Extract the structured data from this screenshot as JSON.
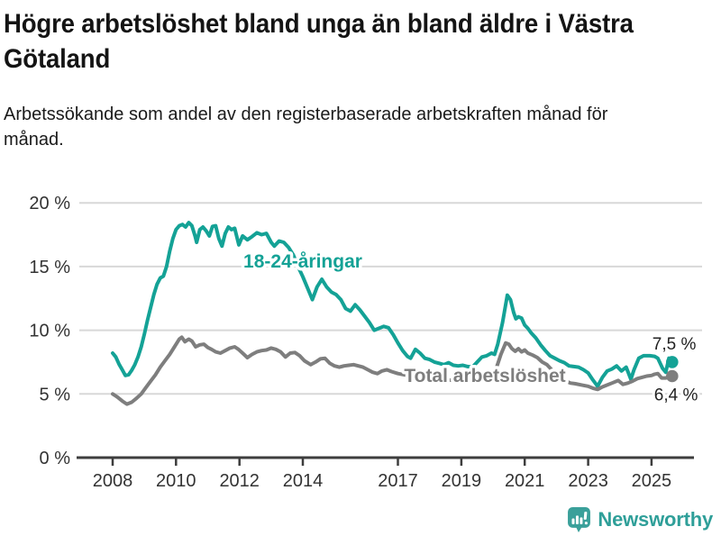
{
  "title": "Högre arbetslöshet bland unga än bland äldre i Västra Götaland",
  "subtitle": "Arbetssökande som andel av den registerbaserade arbetskraften månad för månad.",
  "branding": {
    "name": "Newsworthy"
  },
  "colors": {
    "youth_line": "#14a296",
    "total_line": "#7e7e7e",
    "grid": "#d8d8d8",
    "axis": "#3d3d3d",
    "tick_text": "#333333",
    "value_label": "#222222",
    "logo": "#2f9f99",
    "logo_icon": "#3aa09a"
  },
  "chart_data": {
    "type": "line",
    "title": "Högre arbetslöshet bland unga än bland äldre i Västra Götaland",
    "subtitle": "Arbetssökande som andel av den registerbaserade arbetskraften månad för månad.",
    "xlabel": "",
    "ylabel": "",
    "ylim": [
      0,
      20
    ],
    "xlim": [
      2008,
      2025.75
    ],
    "grid": true,
    "legend_position": "inline-labels",
    "y_ticks": [
      {
        "value": 0,
        "label": "0 %"
      },
      {
        "value": 5,
        "label": "5 %"
      },
      {
        "value": 10,
        "label": "10 %"
      },
      {
        "value": 15,
        "label": "15 %"
      },
      {
        "value": 20,
        "label": "20 %"
      }
    ],
    "x_ticks": [
      {
        "value": 2008,
        "label": "2008"
      },
      {
        "value": 2010,
        "label": "2010"
      },
      {
        "value": 2012,
        "label": "2012"
      },
      {
        "value": 2014,
        "label": "2014"
      },
      {
        "value": 2017,
        "label": "2017"
      },
      {
        "value": 2019,
        "label": "2019"
      },
      {
        "value": 2021,
        "label": "2021"
      },
      {
        "value": 2023,
        "label": "2023"
      },
      {
        "value": 2025,
        "label": "2025"
      }
    ],
    "series": [
      {
        "name": "18-24-åringar",
        "color": "#14a296",
        "end_label": "7,5 %",
        "end_value": 7.5,
        "points": [
          [
            2008.0,
            8.2
          ],
          [
            2008.1,
            7.9
          ],
          [
            2008.2,
            7.35
          ],
          [
            2008.3,
            6.9
          ],
          [
            2008.4,
            6.45
          ],
          [
            2008.5,
            6.5
          ],
          [
            2008.6,
            6.85
          ],
          [
            2008.7,
            7.3
          ],
          [
            2008.8,
            7.9
          ],
          [
            2008.9,
            8.7
          ],
          [
            2009.0,
            9.7
          ],
          [
            2009.1,
            10.8
          ],
          [
            2009.2,
            11.8
          ],
          [
            2009.3,
            12.8
          ],
          [
            2009.4,
            13.6
          ],
          [
            2009.5,
            14.1
          ],
          [
            2009.6,
            14.25
          ],
          [
            2009.7,
            15.0
          ],
          [
            2009.8,
            16.2
          ],
          [
            2009.9,
            17.2
          ],
          [
            2010.0,
            17.9
          ],
          [
            2010.1,
            18.2
          ],
          [
            2010.2,
            18.3
          ],
          [
            2010.3,
            18.1
          ],
          [
            2010.4,
            18.45
          ],
          [
            2010.5,
            18.2
          ],
          [
            2010.6,
            17.4
          ],
          [
            2010.65,
            16.9
          ],
          [
            2010.75,
            17.9
          ],
          [
            2010.85,
            18.1
          ],
          [
            2010.95,
            17.8
          ],
          [
            2011.05,
            17.4
          ],
          [
            2011.15,
            18.15
          ],
          [
            2011.25,
            18.2
          ],
          [
            2011.35,
            17.2
          ],
          [
            2011.45,
            16.6
          ],
          [
            2011.55,
            17.6
          ],
          [
            2011.65,
            18.1
          ],
          [
            2011.75,
            17.9
          ],
          [
            2011.85,
            18.0
          ],
          [
            2011.98,
            16.7
          ],
          [
            2012.1,
            17.4
          ],
          [
            2012.25,
            17.1
          ],
          [
            2012.4,
            17.35
          ],
          [
            2012.55,
            17.65
          ],
          [
            2012.7,
            17.5
          ],
          [
            2012.85,
            17.6
          ],
          [
            2013.0,
            16.9
          ],
          [
            2013.1,
            16.6
          ],
          [
            2013.25,
            17.0
          ],
          [
            2013.4,
            16.9
          ],
          [
            2013.55,
            16.5
          ],
          [
            2013.7,
            15.9
          ],
          [
            2013.85,
            15.0
          ],
          [
            2014.0,
            14.2
          ],
          [
            2014.15,
            13.3
          ],
          [
            2014.3,
            12.4
          ],
          [
            2014.45,
            13.4
          ],
          [
            2014.6,
            14.0
          ],
          [
            2014.75,
            13.4
          ],
          [
            2014.9,
            13.0
          ],
          [
            2015.05,
            12.8
          ],
          [
            2015.2,
            12.4
          ],
          [
            2015.35,
            11.7
          ],
          [
            2015.5,
            11.5
          ],
          [
            2015.65,
            12.0
          ],
          [
            2015.8,
            11.6
          ],
          [
            2015.95,
            11.1
          ],
          [
            2016.1,
            10.6
          ],
          [
            2016.25,
            10.0
          ],
          [
            2016.4,
            10.15
          ],
          [
            2016.55,
            10.3
          ],
          [
            2016.7,
            10.2
          ],
          [
            2016.85,
            9.65
          ],
          [
            2017.0,
            9.0
          ],
          [
            2017.15,
            8.4
          ],
          [
            2017.3,
            7.95
          ],
          [
            2017.4,
            7.8
          ],
          [
            2017.55,
            8.5
          ],
          [
            2017.7,
            8.2
          ],
          [
            2017.85,
            7.8
          ],
          [
            2018.0,
            7.7
          ],
          [
            2018.15,
            7.5
          ],
          [
            2018.3,
            7.4
          ],
          [
            2018.45,
            7.3
          ],
          [
            2018.6,
            7.45
          ],
          [
            2018.75,
            7.25
          ],
          [
            2018.9,
            7.2
          ],
          [
            2019.05,
            7.25
          ],
          [
            2019.2,
            7.15
          ],
          [
            2019.35,
            7.1
          ],
          [
            2019.5,
            7.5
          ],
          [
            2019.65,
            7.9
          ],
          [
            2019.8,
            8.0
          ],
          [
            2019.95,
            8.2
          ],
          [
            2020.05,
            8.1
          ],
          [
            2020.15,
            8.9
          ],
          [
            2020.3,
            10.6
          ],
          [
            2020.45,
            12.75
          ],
          [
            2020.55,
            12.4
          ],
          [
            2020.65,
            11.4
          ],
          [
            2020.72,
            10.9
          ],
          [
            2020.8,
            11.05
          ],
          [
            2020.9,
            10.95
          ],
          [
            2021.0,
            10.4
          ],
          [
            2021.1,
            10.15
          ],
          [
            2021.2,
            9.8
          ],
          [
            2021.35,
            9.4
          ],
          [
            2021.5,
            8.85
          ],
          [
            2021.65,
            8.4
          ],
          [
            2021.8,
            8.0
          ],
          [
            2021.95,
            7.8
          ],
          [
            2022.1,
            7.6
          ],
          [
            2022.25,
            7.45
          ],
          [
            2022.4,
            7.2
          ],
          [
            2022.55,
            7.15
          ],
          [
            2022.7,
            7.1
          ],
          [
            2022.85,
            6.9
          ],
          [
            2023.0,
            6.65
          ],
          [
            2023.15,
            6.1
          ],
          [
            2023.3,
            5.6
          ],
          [
            2023.45,
            6.3
          ],
          [
            2023.6,
            6.8
          ],
          [
            2023.75,
            6.95
          ],
          [
            2023.9,
            7.2
          ],
          [
            2024.05,
            6.8
          ],
          [
            2024.2,
            7.1
          ],
          [
            2024.35,
            6.15
          ],
          [
            2024.45,
            6.9
          ],
          [
            2024.6,
            7.8
          ],
          [
            2024.75,
            8.0
          ],
          [
            2024.95,
            8.0
          ],
          [
            2025.1,
            7.95
          ],
          [
            2025.2,
            7.8
          ],
          [
            2025.35,
            7.0
          ],
          [
            2025.45,
            6.7
          ],
          [
            2025.55,
            7.8
          ],
          [
            2025.65,
            7.5
          ]
        ]
      },
      {
        "name": "Total arbetslöshet",
        "color": "#7e7e7e",
        "end_label": "6,4 %",
        "end_value": 6.4,
        "points": [
          [
            2008.0,
            5.0
          ],
          [
            2008.15,
            4.75
          ],
          [
            2008.3,
            4.45
          ],
          [
            2008.45,
            4.2
          ],
          [
            2008.6,
            4.35
          ],
          [
            2008.75,
            4.65
          ],
          [
            2008.9,
            5.0
          ],
          [
            2009.05,
            5.5
          ],
          [
            2009.2,
            6.0
          ],
          [
            2009.35,
            6.5
          ],
          [
            2009.5,
            7.1
          ],
          [
            2009.65,
            7.6
          ],
          [
            2009.8,
            8.1
          ],
          [
            2009.95,
            8.7
          ],
          [
            2010.1,
            9.3
          ],
          [
            2010.18,
            9.45
          ],
          [
            2010.28,
            9.1
          ],
          [
            2010.4,
            9.3
          ],
          [
            2010.5,
            9.15
          ],
          [
            2010.62,
            8.7
          ],
          [
            2010.75,
            8.85
          ],
          [
            2010.88,
            8.9
          ],
          [
            2011.0,
            8.65
          ],
          [
            2011.12,
            8.5
          ],
          [
            2011.25,
            8.3
          ],
          [
            2011.4,
            8.2
          ],
          [
            2011.55,
            8.4
          ],
          [
            2011.7,
            8.6
          ],
          [
            2011.85,
            8.7
          ],
          [
            2011.97,
            8.5
          ],
          [
            2012.1,
            8.2
          ],
          [
            2012.25,
            7.85
          ],
          [
            2012.4,
            8.1
          ],
          [
            2012.55,
            8.3
          ],
          [
            2012.7,
            8.4
          ],
          [
            2012.85,
            8.45
          ],
          [
            2013.0,
            8.6
          ],
          [
            2013.15,
            8.5
          ],
          [
            2013.3,
            8.3
          ],
          [
            2013.45,
            7.9
          ],
          [
            2013.6,
            8.2
          ],
          [
            2013.75,
            8.25
          ],
          [
            2013.9,
            8.0
          ],
          [
            2014.05,
            7.6
          ],
          [
            2014.25,
            7.3
          ],
          [
            2014.4,
            7.5
          ],
          [
            2014.55,
            7.75
          ],
          [
            2014.7,
            7.8
          ],
          [
            2014.85,
            7.4
          ],
          [
            2015.0,
            7.2
          ],
          [
            2015.15,
            7.1
          ],
          [
            2015.3,
            7.2
          ],
          [
            2015.45,
            7.25
          ],
          [
            2015.6,
            7.3
          ],
          [
            2015.75,
            7.2
          ],
          [
            2015.9,
            7.1
          ],
          [
            2016.05,
            6.9
          ],
          [
            2016.2,
            6.7
          ],
          [
            2016.35,
            6.6
          ],
          [
            2016.5,
            6.8
          ],
          [
            2016.65,
            6.9
          ],
          [
            2016.8,
            6.75
          ],
          [
            2017.0,
            6.6
          ],
          [
            2017.2,
            6.5
          ],
          [
            2017.4,
            6.45
          ],
          [
            2017.6,
            6.4
          ],
          [
            2017.8,
            6.3
          ],
          [
            2018.0,
            6.25
          ],
          [
            2018.2,
            6.2
          ],
          [
            2018.4,
            6.15
          ],
          [
            2018.6,
            6.1
          ],
          [
            2018.8,
            6.05
          ],
          [
            2019.0,
            6.0
          ],
          [
            2019.2,
            6.05
          ],
          [
            2019.4,
            6.1
          ],
          [
            2019.6,
            6.2
          ],
          [
            2019.8,
            6.3
          ],
          [
            2019.95,
            6.45
          ],
          [
            2020.1,
            7.0
          ],
          [
            2020.25,
            8.1
          ],
          [
            2020.4,
            9.0
          ],
          [
            2020.5,
            8.9
          ],
          [
            2020.6,
            8.55
          ],
          [
            2020.7,
            8.35
          ],
          [
            2020.8,
            8.55
          ],
          [
            2020.9,
            8.3
          ],
          [
            2021.0,
            8.45
          ],
          [
            2021.1,
            8.2
          ],
          [
            2021.25,
            8.05
          ],
          [
            2021.4,
            7.85
          ],
          [
            2021.55,
            7.5
          ],
          [
            2021.7,
            7.3
          ],
          [
            2021.85,
            6.9
          ],
          [
            2022.0,
            6.5
          ],
          [
            2022.15,
            6.2
          ],
          [
            2022.3,
            6.0
          ],
          [
            2022.45,
            5.85
          ],
          [
            2022.6,
            5.8
          ],
          [
            2022.8,
            5.7
          ],
          [
            2023.0,
            5.6
          ],
          [
            2023.15,
            5.45
          ],
          [
            2023.3,
            5.35
          ],
          [
            2023.45,
            5.55
          ],
          [
            2023.6,
            5.7
          ],
          [
            2023.75,
            5.85
          ],
          [
            2023.95,
            6.05
          ],
          [
            2024.1,
            5.75
          ],
          [
            2024.25,
            5.85
          ],
          [
            2024.4,
            6.0
          ],
          [
            2024.55,
            6.2
          ],
          [
            2024.7,
            6.3
          ],
          [
            2024.85,
            6.4
          ],
          [
            2025.0,
            6.45
          ],
          [
            2025.1,
            6.55
          ],
          [
            2025.2,
            6.6
          ],
          [
            2025.32,
            6.25
          ],
          [
            2025.45,
            6.25
          ],
          [
            2025.55,
            6.35
          ],
          [
            2025.65,
            6.4
          ]
        ]
      }
    ]
  }
}
